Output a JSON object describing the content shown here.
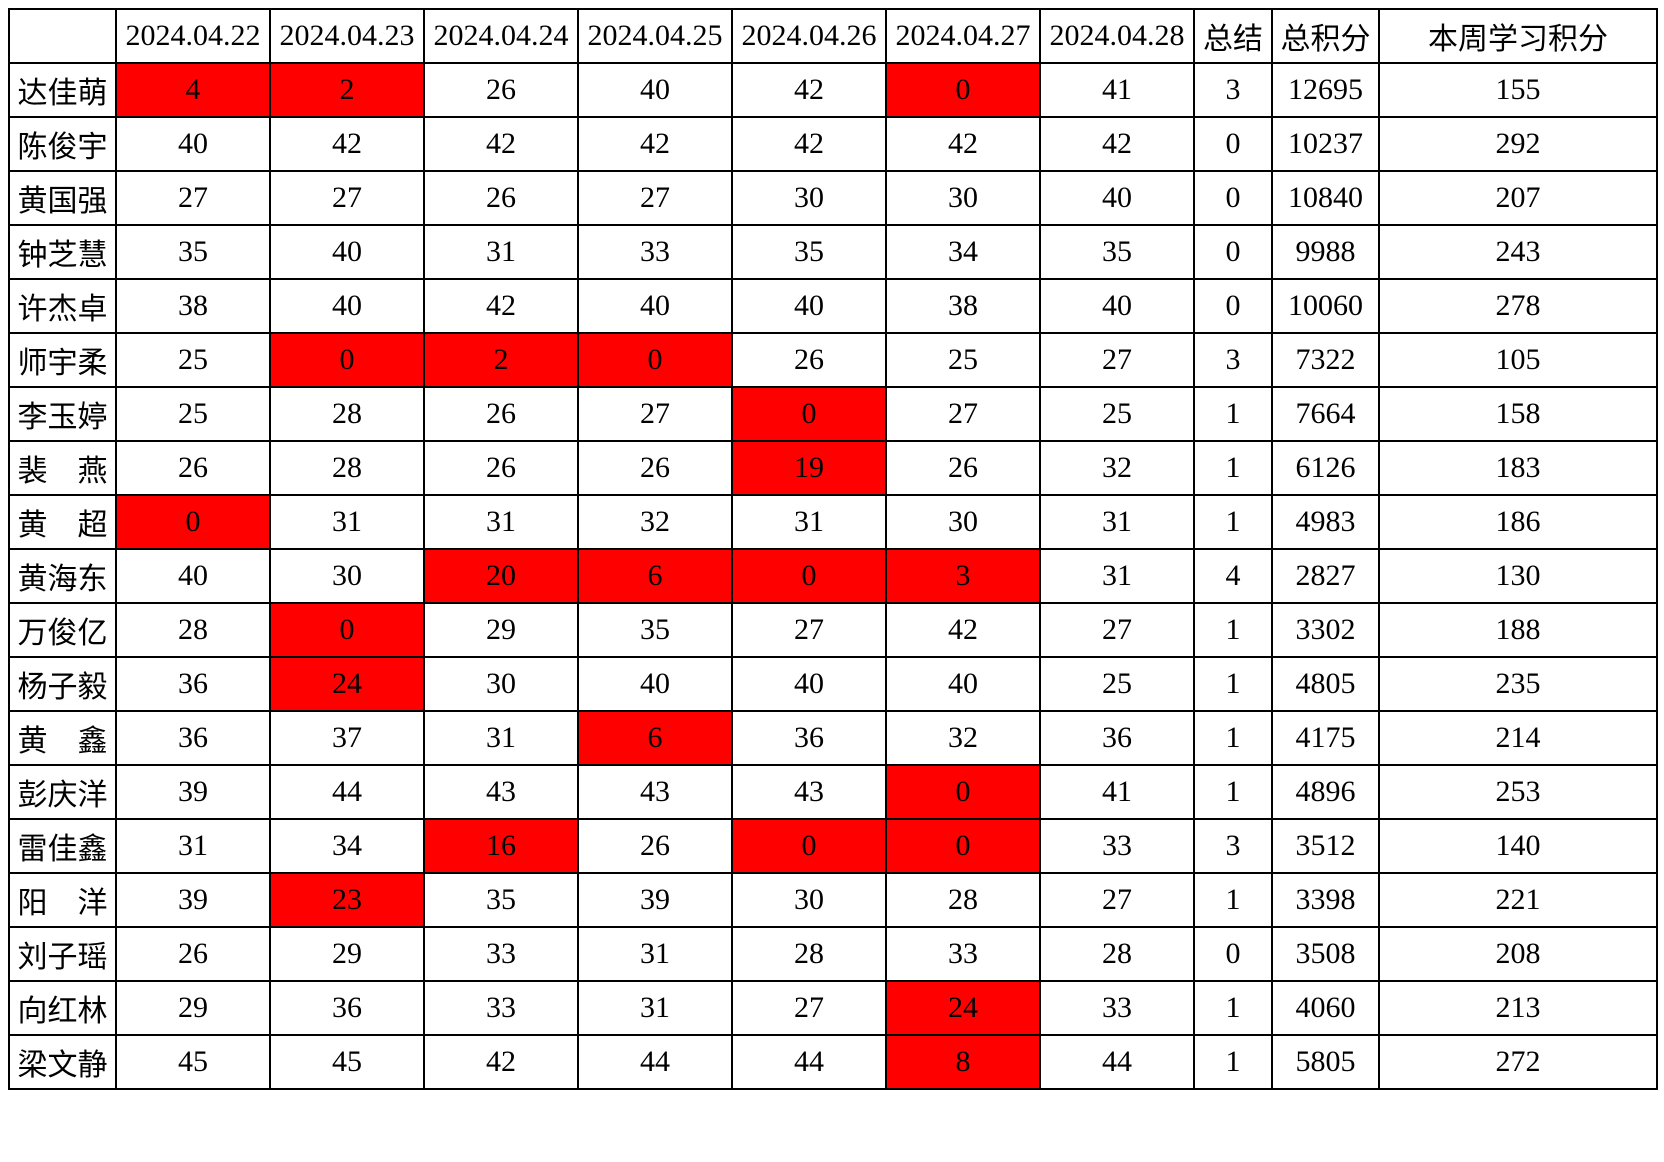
{
  "table": {
    "corner_label": "",
    "date_columns": [
      "2024.04.22",
      "2024.04.23",
      "2024.04.24",
      "2024.04.25",
      "2024.04.26",
      "2024.04.27",
      "2024.04.28"
    ],
    "summary_columns": [
      "总结",
      "总积分",
      "本周学习积分"
    ],
    "colors": {
      "highlight_background": "#ff0000",
      "highlight_digit_text": "#9a1b1b",
      "accent_text": "#ff0000",
      "grid_border": "#000000",
      "default_text": "#000000"
    },
    "rows": [
      {
        "name": "达佳萌",
        "daily": [
          4,
          2,
          26,
          40,
          42,
          0,
          41
        ],
        "highlights": [
          0,
          1,
          5
        ],
        "summary": 3,
        "total": 12695,
        "week": 155
      },
      {
        "name": "陈俊宇",
        "daily": [
          40,
          42,
          42,
          42,
          42,
          42,
          42
        ],
        "highlights": [],
        "summary": 0,
        "total": 10237,
        "week": 292
      },
      {
        "name": "黄国强",
        "daily": [
          27,
          27,
          26,
          27,
          30,
          30,
          40
        ],
        "highlights": [],
        "summary": 0,
        "total": 10840,
        "week": 207
      },
      {
        "name": "钟芝慧",
        "daily": [
          35,
          40,
          31,
          33,
          35,
          34,
          35
        ],
        "highlights": [],
        "summary": 0,
        "total": 9988,
        "week": 243
      },
      {
        "name": "许杰卓",
        "daily": [
          38,
          40,
          42,
          40,
          40,
          38,
          40
        ],
        "highlights": [],
        "summary": 0,
        "total": 10060,
        "week": 278
      },
      {
        "name": "师宇柔",
        "daily": [
          25,
          0,
          2,
          0,
          26,
          25,
          27
        ],
        "highlights": [
          1,
          2,
          3
        ],
        "summary": 3,
        "total": 7322,
        "week": 105
      },
      {
        "name": "李玉婷",
        "daily": [
          25,
          28,
          26,
          27,
          0,
          27,
          25
        ],
        "highlights": [
          4
        ],
        "summary": 1,
        "total": 7664,
        "week": 158
      },
      {
        "name": "裴　燕",
        "daily": [
          26,
          28,
          26,
          26,
          19,
          26,
          32
        ],
        "highlights": [
          4
        ],
        "summary": 1,
        "total": 6126,
        "week": 183
      },
      {
        "name": "黄　超",
        "daily": [
          0,
          31,
          31,
          32,
          31,
          30,
          31
        ],
        "highlights": [
          0
        ],
        "summary": 1,
        "total": 4983,
        "week": 186
      },
      {
        "name": "黄海东",
        "daily": [
          40,
          30,
          20,
          6,
          0,
          3,
          31
        ],
        "highlights": [
          2,
          3,
          4,
          5
        ],
        "summary": 4,
        "total": 2827,
        "week": 130
      },
      {
        "name": "万俊亿",
        "daily": [
          28,
          0,
          29,
          35,
          27,
          42,
          27
        ],
        "highlights": [
          1
        ],
        "summary": 1,
        "total": 3302,
        "week": 188
      },
      {
        "name": "杨子毅",
        "daily": [
          36,
          24,
          30,
          40,
          40,
          40,
          25
        ],
        "highlights": [
          1
        ],
        "summary": 1,
        "total": 4805,
        "week": 235
      },
      {
        "name": "黄　鑫",
        "daily": [
          36,
          37,
          31,
          6,
          36,
          32,
          36
        ],
        "highlights": [
          3
        ],
        "summary": 1,
        "total": 4175,
        "week": 214
      },
      {
        "name": "彭庆洋",
        "daily": [
          39,
          44,
          43,
          43,
          43,
          0,
          41
        ],
        "highlights": [
          5
        ],
        "summary": 1,
        "total": 4896,
        "week": 253
      },
      {
        "name": "雷佳鑫",
        "daily": [
          31,
          34,
          16,
          26,
          0,
          0,
          33
        ],
        "highlights": [
          2,
          4,
          5
        ],
        "summary": 3,
        "total": 3512,
        "week": 140
      },
      {
        "name": "阳　洋",
        "daily": [
          39,
          23,
          35,
          39,
          30,
          28,
          27
        ],
        "highlights": [
          1
        ],
        "summary": 1,
        "total": 3398,
        "week": 221
      },
      {
        "name": "刘子瑶",
        "daily": [
          26,
          29,
          33,
          31,
          28,
          33,
          28
        ],
        "highlights": [],
        "summary": 0,
        "total": 3508,
        "week": 208
      },
      {
        "name": "向红林",
        "daily": [
          29,
          36,
          33,
          31,
          27,
          24,
          33
        ],
        "highlights": [
          5
        ],
        "summary": 1,
        "total": 4060,
        "week": 213
      },
      {
        "name": "梁文静",
        "daily": [
          45,
          45,
          42,
          44,
          44,
          8,
          44
        ],
        "highlights": [
          5
        ],
        "summary": 1,
        "total": 5805,
        "week": 272
      }
    ]
  }
}
